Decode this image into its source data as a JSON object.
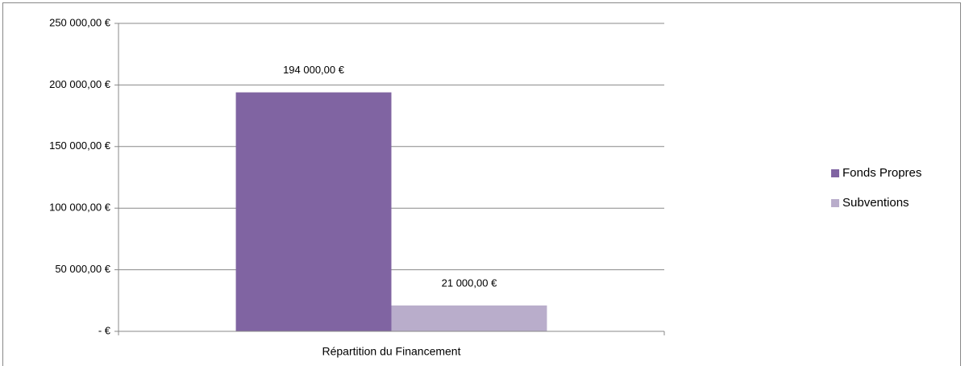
{
  "chart_data": {
    "type": "bar",
    "categories": [
      "Répartition du Financement"
    ],
    "series": [
      {
        "name": "Fonds Propres",
        "color": "#8064a2",
        "values": [
          194000
        ],
        "value_labels": [
          "194 000,00 €"
        ]
      },
      {
        "name": "Subventions",
        "color": "#b9adcb",
        "values": [
          21000
        ],
        "value_labels": [
          "21 000,00 €"
        ]
      }
    ],
    "ylim": [
      0,
      250000
    ],
    "yticks": [
      {
        "value": 0,
        "label": "-   €"
      },
      {
        "value": 50000,
        "label": "50 000,00 €"
      },
      {
        "value": 100000,
        "label": "100 000,00 €"
      },
      {
        "value": 150000,
        "label": "150 000,00 €"
      },
      {
        "value": 200000,
        "label": "200 000,00 €"
      },
      {
        "value": 250000,
        "label": "250 000,00 €"
      }
    ],
    "grid": true,
    "legend": "right"
  }
}
